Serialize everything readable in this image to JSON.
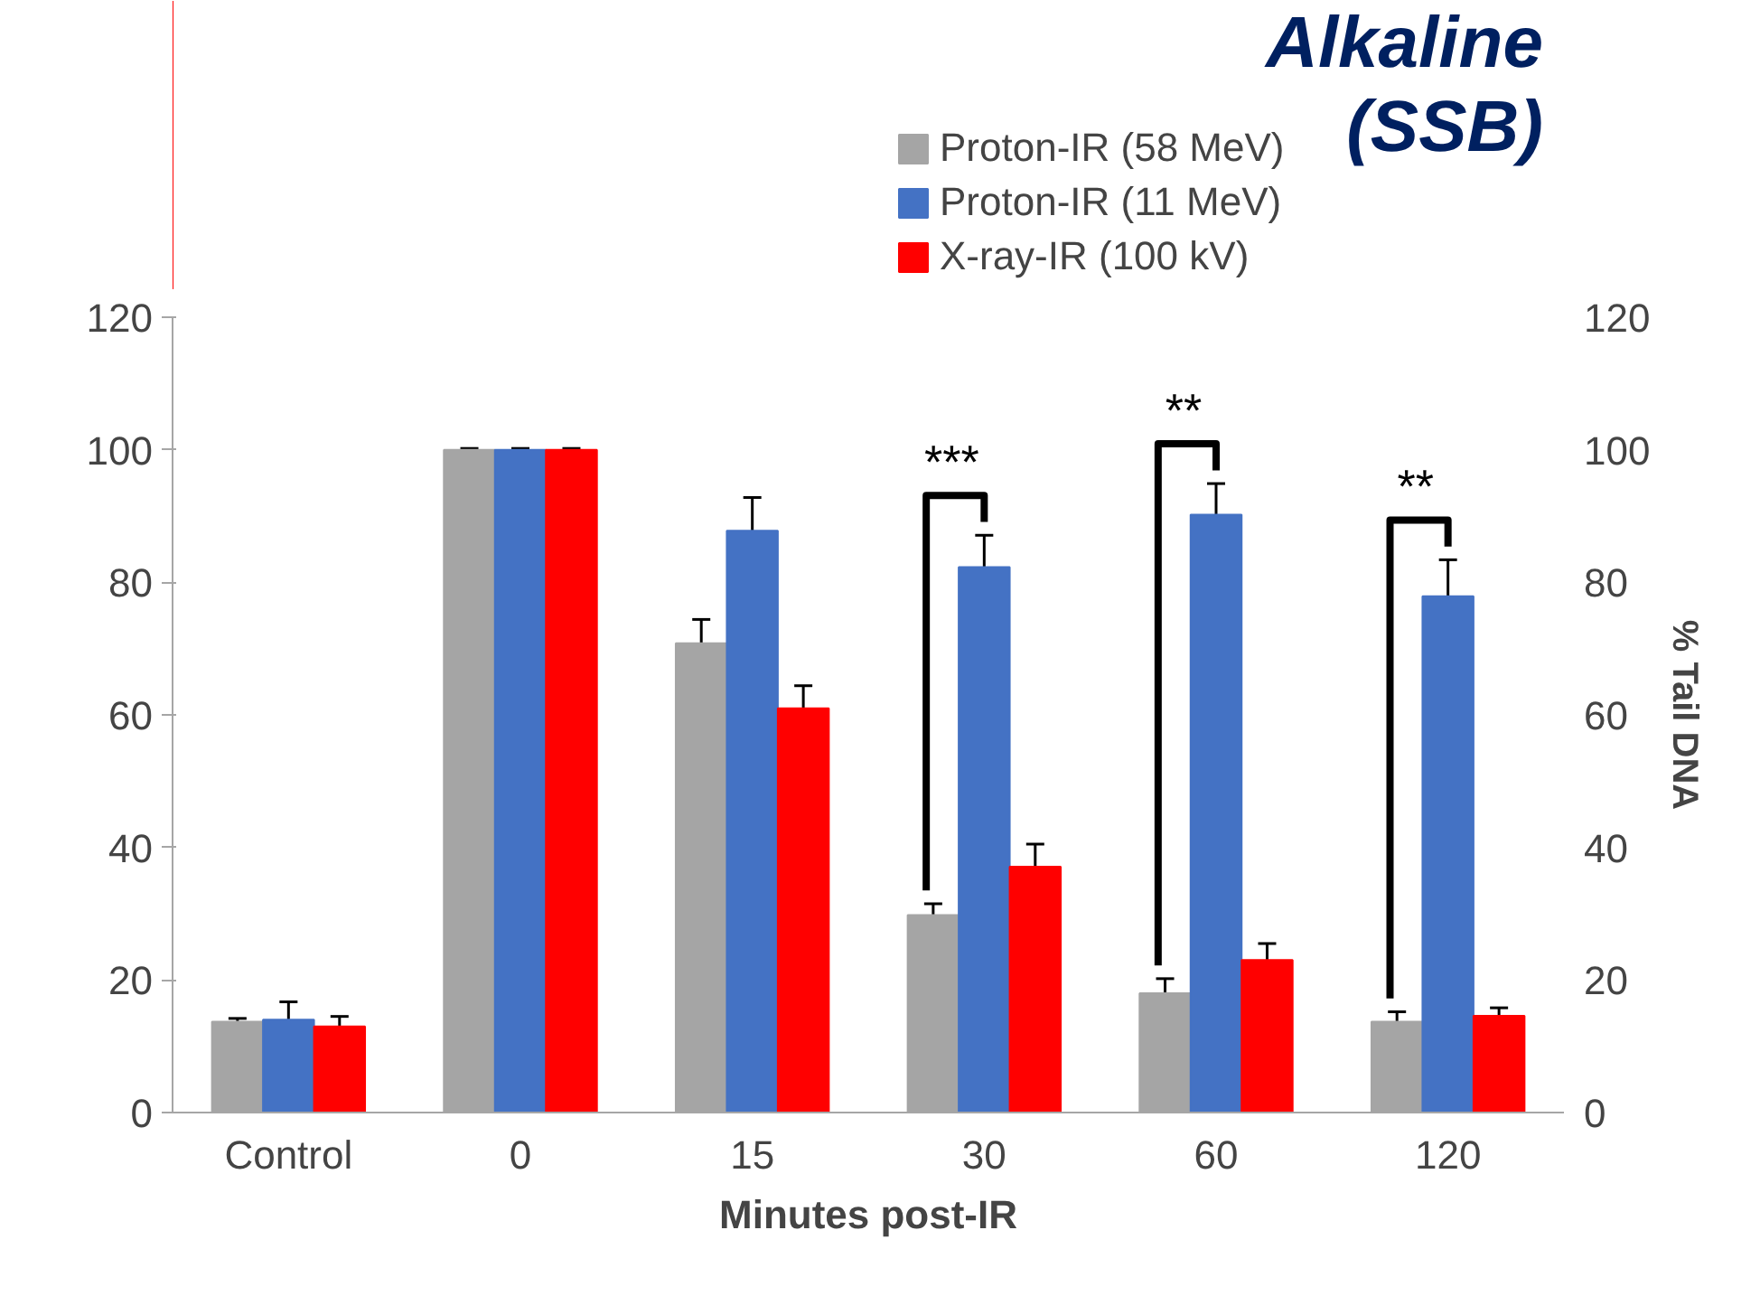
{
  "chart_data": {
    "type": "bar",
    "title": "Alkaline (SSB)",
    "xlabel": "Minutes post-IR",
    "y2label": "% Tail DNA",
    "categories": [
      "Control",
      "0",
      "15",
      "30",
      "60",
      "120"
    ],
    "series": [
      {
        "name": "Proton-IR (58 MeV)",
        "color": "#a5a5a5",
        "values": [
          13.7,
          100,
          70.8,
          29.8,
          18,
          13.7
        ],
        "errors": [
          0.5,
          0.2,
          3.6,
          1.7,
          2.2,
          1.5
        ]
      },
      {
        "name": "Proton-IR (11 MeV)",
        "color": "#4472c4",
        "values": [
          14,
          100,
          87.8,
          82.3,
          90.2,
          77.9
        ],
        "errors": [
          2.7,
          0.2,
          5,
          4.8,
          4.7,
          5.5
        ]
      },
      {
        "name": "X-ray-IR (100 kV)",
        "color": "#ff0000",
        "values": [
          13,
          100,
          61,
          37.1,
          23,
          14.6
        ],
        "errors": [
          1.5,
          0.2,
          3.4,
          3.4,
          2.5,
          1.2
        ]
      }
    ],
    "ylim": [
      0,
      120
    ],
    "yticks": [
      0,
      20,
      40,
      60,
      80,
      100,
      120
    ],
    "y2lim": [
      0,
      120
    ],
    "y2ticks": [
      0,
      20,
      40,
      60,
      80,
      100,
      120
    ],
    "annotations": [
      "***",
      "**",
      "**"
    ],
    "grid": false,
    "legend": "top"
  }
}
